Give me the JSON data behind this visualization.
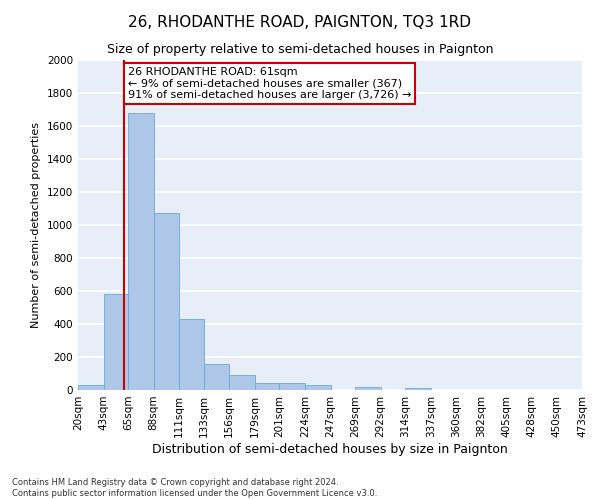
{
  "title": "26, RHODANTHE ROAD, PAIGNTON, TQ3 1RD",
  "subtitle": "Size of property relative to semi-detached houses in Paignton",
  "xlabel": "Distribution of semi-detached houses by size in Paignton",
  "ylabel": "Number of semi-detached properties",
  "footnote": "Contains HM Land Registry data © Crown copyright and database right 2024.\nContains public sector information licensed under the Open Government Licence v3.0.",
  "bar_edges": [
    20,
    43,
    65,
    88,
    111,
    133,
    156,
    179,
    201,
    224,
    247,
    269,
    292,
    314,
    337,
    360,
    382,
    405,
    428,
    450,
    473
  ],
  "bar_heights": [
    30,
    580,
    1680,
    1070,
    430,
    160,
    90,
    45,
    40,
    30,
    0,
    20,
    0,
    15,
    0,
    0,
    0,
    0,
    0,
    0
  ],
  "bar_color": "#aec6e8",
  "bar_edge_color": "#6aaad4",
  "subject_value": 61,
  "red_line_color": "#cc0000",
  "annotation_text": "26 RHODANTHE ROAD: 61sqm\n← 9% of semi-detached houses are smaller (367)\n91% of semi-detached houses are larger (3,726) →",
  "annotation_box_color": "#ffffff",
  "annotation_box_edge": "#cc0000",
  "ylim": [
    0,
    2000
  ],
  "yticks": [
    0,
    200,
    400,
    600,
    800,
    1000,
    1200,
    1400,
    1600,
    1800,
    2000
  ],
  "background_color": "#e8eef8",
  "grid_color": "#ffffff",
  "title_fontsize": 11,
  "subtitle_fontsize": 9,
  "xlabel_fontsize": 9,
  "ylabel_fontsize": 8,
  "tick_fontsize": 7.5,
  "footnote_fontsize": 6,
  "annotation_fontsize": 8
}
